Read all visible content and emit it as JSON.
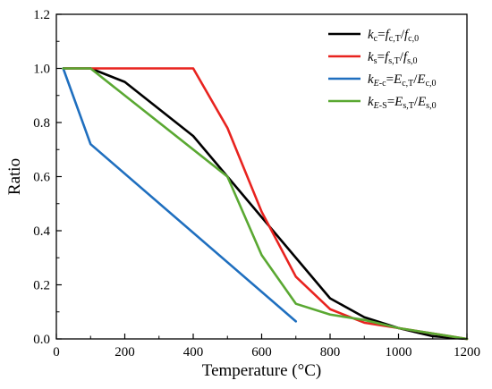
{
  "chart_data": {
    "type": "line",
    "xlabel": "Temperature (°C)",
    "ylabel": "Ratio",
    "xlim": [
      0,
      1200
    ],
    "ylim": [
      0,
      1.2
    ],
    "x_ticks": [
      0,
      200,
      400,
      600,
      800,
      1000,
      1200
    ],
    "y_ticks": [
      0.0,
      0.2,
      0.4,
      0.6,
      0.8,
      1.0,
      1.2
    ],
    "x_tick_labels": [
      "0",
      "200",
      "400",
      "600",
      "800",
      "1000",
      "1200"
    ],
    "y_tick_labels": [
      "0.0",
      "0.2",
      "0.4",
      "0.6",
      "0.8",
      "1.0",
      "1.2"
    ],
    "grid": false,
    "legend_position": "top-right",
    "series": [
      {
        "key": "kc",
        "color": "#000000",
        "legend": [
          {
            "t": "k",
            "i": true
          },
          {
            "t": "c",
            "sub": true
          },
          {
            "t": "=",
            "i": false
          },
          {
            "t": "f",
            "i": true
          },
          {
            "t": "c,T",
            "sub": true
          },
          {
            "t": "/",
            "i": false
          },
          {
            "t": "f",
            "i": true
          },
          {
            "t": "c,0",
            "sub": true
          }
        ],
        "x": [
          20,
          100,
          200,
          400,
          500,
          600,
          700,
          800,
          900,
          1000,
          1100,
          1200
        ],
        "y": [
          1.0,
          1.0,
          0.95,
          0.75,
          0.6,
          0.45,
          0.3,
          0.15,
          0.08,
          0.04,
          0.01,
          0.0
        ]
      },
      {
        "key": "ks",
        "color": "#e8231f",
        "legend": [
          {
            "t": "k",
            "i": true
          },
          {
            "t": "s",
            "sub": true
          },
          {
            "t": "=",
            "i": false
          },
          {
            "t": "f",
            "i": true
          },
          {
            "t": "s,T",
            "sub": true
          },
          {
            "t": "/",
            "i": false
          },
          {
            "t": "f",
            "i": true
          },
          {
            "t": "s,0",
            "sub": true
          }
        ],
        "x": [
          20,
          400,
          500,
          600,
          700,
          800,
          900,
          1000,
          1100,
          1200
        ],
        "y": [
          1.0,
          1.0,
          0.78,
          0.47,
          0.23,
          0.11,
          0.06,
          0.04,
          0.02,
          0.0
        ]
      },
      {
        "key": "kEc",
        "color": "#1f6fbf",
        "legend": [
          {
            "t": "k",
            "i": true
          },
          {
            "t": "E",
            "sub": true,
            "i": true
          },
          {
            "t": "-c",
            "sub": true
          },
          {
            "t": "=",
            "i": false
          },
          {
            "t": "E",
            "i": true
          },
          {
            "t": "c,T",
            "sub": true
          },
          {
            "t": "/",
            "i": false
          },
          {
            "t": "E",
            "i": true
          },
          {
            "t": "c,0",
            "sub": true
          }
        ],
        "x": [
          20,
          100,
          700
        ],
        "y": [
          1.0,
          0.72,
          0.065
        ]
      },
      {
        "key": "kEs",
        "color": "#5aa832",
        "legend": [
          {
            "t": "k",
            "i": true
          },
          {
            "t": "E",
            "sub": true,
            "i": true
          },
          {
            "t": "-S",
            "sub": true
          },
          {
            "t": "=",
            "i": false
          },
          {
            "t": "E",
            "i": true
          },
          {
            "t": "s,T",
            "sub": true
          },
          {
            "t": "/",
            "i": false
          },
          {
            "t": "E",
            "i": true
          },
          {
            "t": "s,0",
            "sub": true
          }
        ],
        "x": [
          20,
          100,
          500,
          600,
          700,
          800,
          900,
          1000,
          1100,
          1200
        ],
        "y": [
          1.0,
          1.0,
          0.6,
          0.31,
          0.13,
          0.09,
          0.07,
          0.04,
          0.02,
          0.0
        ]
      }
    ]
  }
}
